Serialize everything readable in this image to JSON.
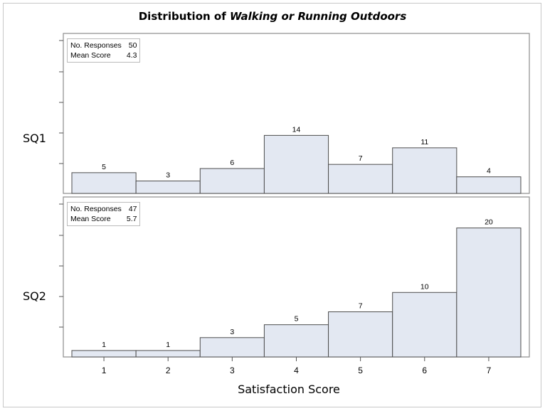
{
  "chart_data": {
    "type": "bar",
    "title_prefix": "Distribution of",
    "title_emphasis": "Walking or Running Outdoors",
    "xlabel": "Satisfaction Score",
    "categories": [
      "1",
      "2",
      "3",
      "4",
      "5",
      "6",
      "7"
    ],
    "panels": [
      {
        "label": "SQ1",
        "values": [
          5,
          3,
          6,
          14,
          7,
          11,
          4
        ],
        "ylim": [
          0,
          26
        ],
        "stats": {
          "responses_label": "No. Responses",
          "responses": "50",
          "mean_label": "Mean Score",
          "mean": "4.3"
        }
      },
      {
        "label": "SQ2",
        "values": [
          1,
          1,
          3,
          5,
          7,
          10,
          20
        ],
        "ylim": [
          0,
          26
        ],
        "stats": {
          "responses_label": "No. Responses",
          "responses": "47",
          "mean_label": "Mean Score",
          "mean": "5.7"
        }
      }
    ],
    "colors": {
      "bar_fill": "#e3e8f2",
      "bar_stroke": "#4d4d4d",
      "axis": "#555555"
    },
    "legend": "top-left",
    "grid": false
  }
}
